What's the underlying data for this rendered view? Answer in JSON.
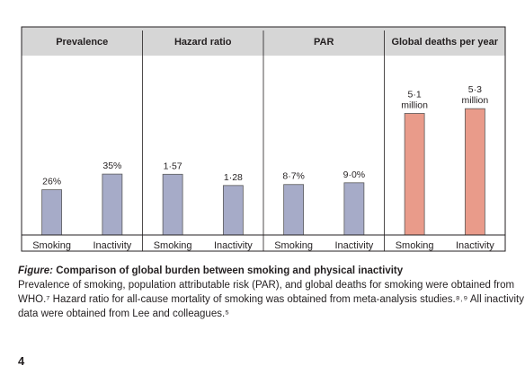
{
  "chart_data": {
    "type": "bar",
    "panels": [
      {
        "title": "Prevalence",
        "categories": [
          "Smoking",
          "Inactivity"
        ],
        "values": [
          26,
          35
        ],
        "value_labels": [
          "26%",
          "35%"
        ],
        "ylim": [
          0,
          100
        ]
      },
      {
        "title": "Hazard ratio",
        "categories": [
          "Smoking",
          "Inactivity"
        ],
        "values": [
          1.57,
          1.28
        ],
        "value_labels": [
          "1·57",
          "1·28"
        ],
        "ylim": [
          0,
          4.5
        ]
      },
      {
        "title": "PAR",
        "categories": [
          "Smoking",
          "Inactivity"
        ],
        "values": [
          8.7,
          9.0
        ],
        "value_labels": [
          "8·7%",
          "9·0%"
        ],
        "ylim": [
          0,
          30
        ]
      },
      {
        "title": "Global deaths per year",
        "categories": [
          "Smoking",
          "Inactivity"
        ],
        "values": [
          5.1,
          5.3
        ],
        "value_labels": [
          "5·1 million",
          "5·3 million"
        ],
        "ylim": [
          0,
          7.3
        ]
      }
    ],
    "grid": false,
    "colors": {
      "grey_bar": "#a6abc8",
      "salmon_bar": "#e99b8a",
      "header_bg": "#d6d6d6"
    }
  },
  "caption": {
    "label": "Figure:",
    "title": "Comparison of global burden between smoking and physical inactivity",
    "body_lines": [
      "Prevalence of smoking, population attributable risk (PAR), and global deaths for smoking were obtained from",
      "WHO.⁷ Hazard ratio for all-cause mortality of smoking was obtained from meta-analysis studies.⁸˒⁹ All inactivity",
      "data were obtained from Lee and colleagues.⁵"
    ]
  },
  "page_number": "4"
}
